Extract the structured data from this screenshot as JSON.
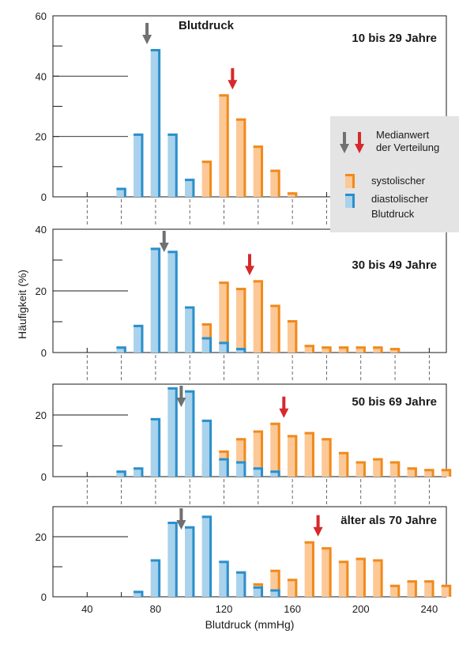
{
  "chart_data": {
    "type": "bar",
    "title": "Blutdruck",
    "xlabel": "Blutdruck (mmHg)",
    "ylabel": "Häufigkeit (%)",
    "x_ticks": [
      40,
      80,
      120,
      160,
      200,
      240
    ],
    "x_range": [
      20,
      250
    ],
    "legend": {
      "median_label": "Medianwert der Verteilung",
      "systolic_label": "systolischer",
      "diastolic_label": "diastolischer Blutdruck",
      "diastolic_color": "#2b8fca",
      "diastolic_fill": "#a9d2ec",
      "systolic_color": "#f08a1c",
      "systolic_fill": "#fcc896",
      "median_diastolic_color": "#707070",
      "median_systolic_color": "#d7282b"
    },
    "panels": [
      {
        "label": "10 bis 29 Jahre",
        "ylim": [
          0,
          60
        ],
        "y_ticks": [
          0,
          20,
          40,
          60
        ],
        "diastolic": [
          [
            60,
            3
          ],
          [
            70,
            21
          ],
          [
            80,
            49
          ],
          [
            90,
            21
          ],
          [
            100,
            6
          ]
        ],
        "systolic": [
          [
            100,
            4
          ],
          [
            110,
            12
          ],
          [
            120,
            34
          ],
          [
            130,
            26
          ],
          [
            140,
            17
          ],
          [
            150,
            9
          ],
          [
            160,
            1.5
          ]
        ],
        "median_diastolic": 75,
        "median_systolic": 125
      },
      {
        "label": "30 bis 49 Jahre",
        "ylim": [
          0,
          40
        ],
        "y_ticks": [
          0,
          20,
          40
        ],
        "diastolic": [
          [
            60,
            2
          ],
          [
            70,
            9
          ],
          [
            80,
            34
          ],
          [
            90,
            33
          ],
          [
            100,
            15
          ],
          [
            110,
            5
          ],
          [
            120,
            3.5
          ],
          [
            130,
            1.5
          ]
        ],
        "systolic": [
          [
            100,
            2.5
          ],
          [
            110,
            9.5
          ],
          [
            120,
            23
          ],
          [
            130,
            21
          ],
          [
            140,
            23.5
          ],
          [
            150,
            15.5
          ],
          [
            160,
            10.5
          ],
          [
            170,
            2.5
          ],
          [
            180,
            2
          ],
          [
            190,
            2
          ],
          [
            200,
            2
          ],
          [
            210,
            2
          ],
          [
            220,
            1.5
          ]
        ],
        "median_diastolic": 85,
        "median_systolic": 135
      },
      {
        "label": "50 bis 69 Jahre",
        "ylim": [
          0,
          30
        ],
        "y_ticks": [
          0,
          20
        ],
        "diastolic": [
          [
            60,
            2
          ],
          [
            70,
            3
          ],
          [
            80,
            19
          ],
          [
            90,
            29
          ],
          [
            100,
            28
          ],
          [
            110,
            18.5
          ],
          [
            120,
            6
          ],
          [
            130,
            5
          ],
          [
            140,
            3
          ],
          [
            150,
            2
          ]
        ],
        "systolic": [
          [
            100,
            2
          ],
          [
            110,
            4
          ],
          [
            120,
            8.5
          ],
          [
            130,
            12.5
          ],
          [
            140,
            15
          ],
          [
            150,
            17.5
          ],
          [
            160,
            13.5
          ],
          [
            170,
            14.5
          ],
          [
            180,
            12.5
          ],
          [
            190,
            8
          ],
          [
            200,
            5
          ],
          [
            210,
            6
          ],
          [
            220,
            5
          ],
          [
            230,
            3
          ],
          [
            240,
            2.5
          ],
          [
            250,
            2.5
          ]
        ],
        "median_diastolic": 95,
        "median_systolic": 155
      },
      {
        "label": "älter als 70 Jahre",
        "ylim": [
          0,
          30
        ],
        "y_ticks": [
          0,
          20
        ],
        "diastolic": [
          [
            70,
            2
          ],
          [
            80,
            12.5
          ],
          [
            90,
            25
          ],
          [
            100,
            23.5
          ],
          [
            110,
            27
          ],
          [
            120,
            12
          ],
          [
            130,
            8.5
          ],
          [
            140,
            3.5
          ],
          [
            150,
            2.5
          ]
        ],
        "systolic": [
          [
            120,
            4
          ],
          [
            130,
            6
          ],
          [
            140,
            4.5
          ],
          [
            150,
            9
          ],
          [
            160,
            6
          ],
          [
            170,
            18.5
          ],
          [
            180,
            16.5
          ],
          [
            190,
            12
          ],
          [
            200,
            13
          ],
          [
            210,
            12.5
          ],
          [
            220,
            4
          ],
          [
            230,
            5.5
          ],
          [
            240,
            5.5
          ],
          [
            250,
            4
          ]
        ],
        "median_diastolic": 95,
        "median_systolic": 175
      }
    ]
  }
}
